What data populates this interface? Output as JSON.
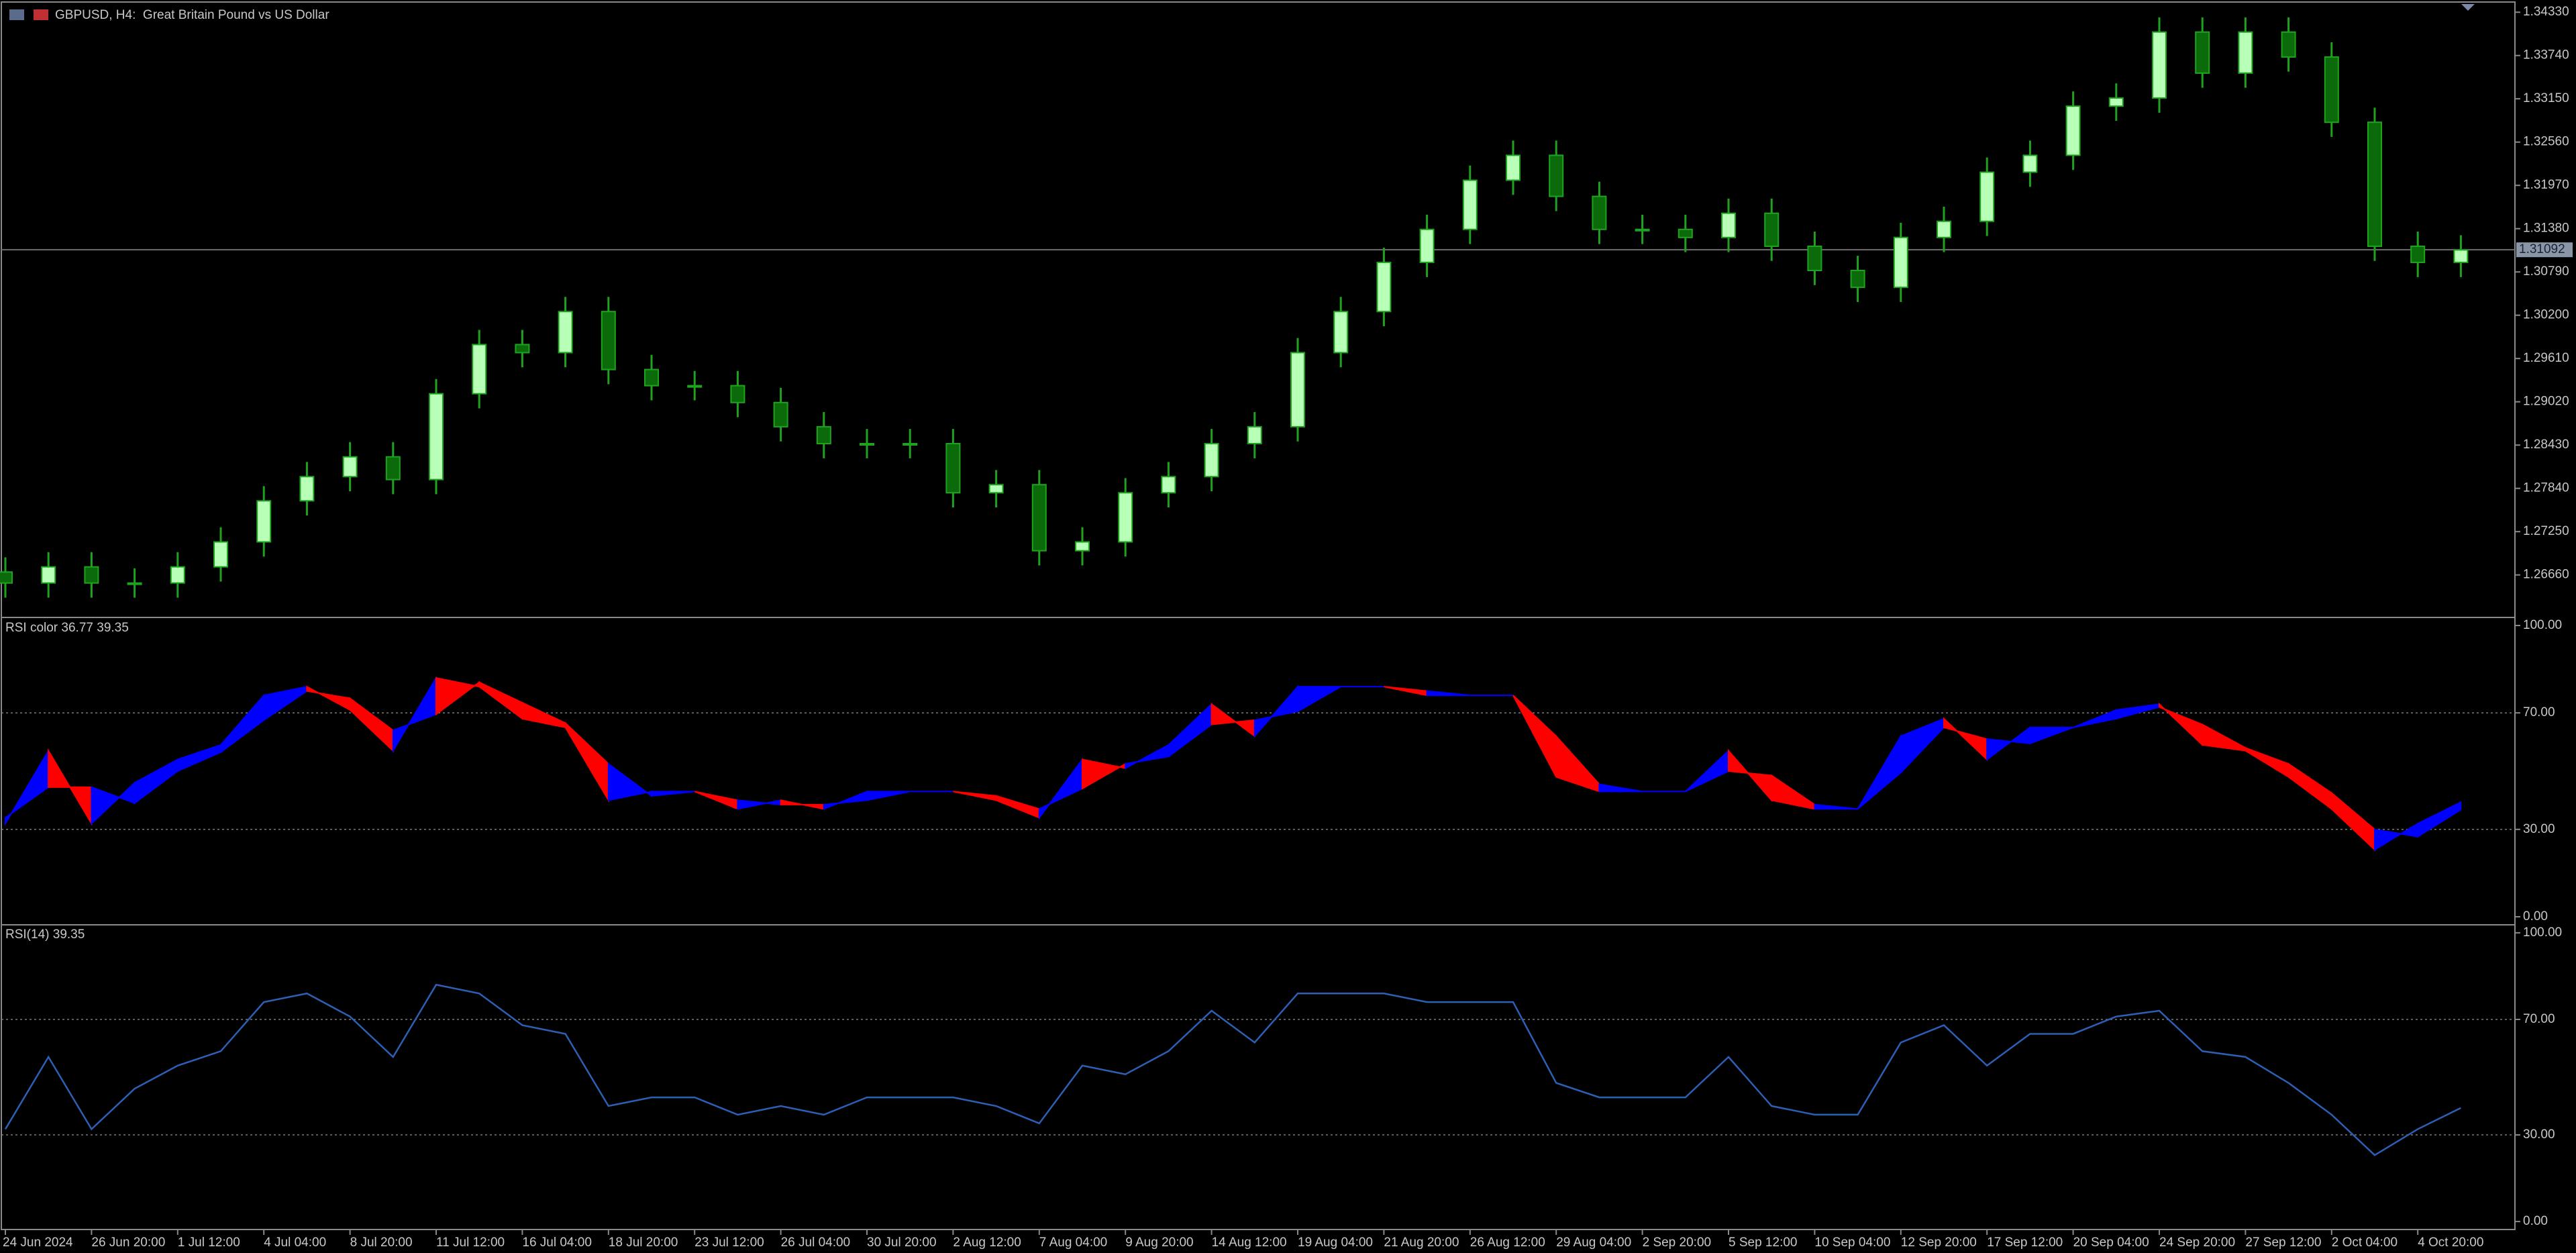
{
  "chart_data": [
    {
      "type": "candlestick",
      "title": "GBPUSD, H4:  Great Britain Pound vs US Dollar",
      "open": [
        1.267,
        1.2655,
        1.2677,
        1.2655,
        1.2655,
        1.2677,
        1.2711,
        1.2767,
        1.28,
        1.2827,
        1.2796,
        1.2913,
        1.298,
        1.2969,
        1.3025,
        1.2946,
        1.2924,
        1.2924,
        1.2901,
        1.2868,
        1.2845,
        1.2845,
        1.2845,
        1.2778,
        1.2789,
        1.2699,
        1.2711,
        1.2778,
        1.28,
        1.2845,
        1.2868,
        1.2969,
        1.3025,
        1.3092,
        1.3137,
        1.3204,
        1.3238,
        1.3182,
        1.3137,
        1.3137,
        1.3126,
        1.3159,
        1.3114,
        1.3081,
        1.3058,
        1.3126,
        1.3148,
        1.3215,
        1.3238,
        1.3305,
        1.3316,
        1.3406,
        1.335,
        1.3406,
        1.3372,
        1.3283,
        1.3114,
        1.3092
      ],
      "high": [
        1.269,
        1.2697,
        1.2697,
        1.2675,
        1.2697,
        1.2731,
        1.2787,
        1.282,
        1.2847,
        1.2847,
        1.2933,
        1.3,
        1.3,
        1.3045,
        1.3045,
        1.2966,
        1.2944,
        1.2944,
        1.2921,
        1.2888,
        1.2865,
        1.2865,
        1.2865,
        1.2809,
        1.2809,
        1.2731,
        1.2798,
        1.282,
        1.2865,
        1.2888,
        1.2989,
        1.3045,
        1.3112,
        1.3157,
        1.3224,
        1.3258,
        1.3258,
        1.3202,
        1.3157,
        1.3157,
        1.3179,
        1.3179,
        1.3134,
        1.3101,
        1.3146,
        1.3168,
        1.3235,
        1.3258,
        1.3325,
        1.3336,
        1.3426,
        1.3426,
        1.3426,
        1.3426,
        1.3392,
        1.3303,
        1.3134,
        1.3129
      ],
      "low": [
        1.2635,
        1.2635,
        1.2635,
        1.2635,
        1.2635,
        1.2657,
        1.2691,
        1.2747,
        1.278,
        1.2776,
        1.2776,
        1.2893,
        1.2949,
        1.2949,
        1.2926,
        1.2904,
        1.2904,
        1.2881,
        1.2848,
        1.2825,
        1.2825,
        1.2825,
        1.2758,
        1.2758,
        1.2679,
        1.2679,
        1.2691,
        1.2758,
        1.278,
        1.2825,
        1.2848,
        1.2949,
        1.3005,
        1.3072,
        1.3117,
        1.3184,
        1.3162,
        1.3117,
        1.3117,
        1.3106,
        1.3106,
        1.3094,
        1.3061,
        1.3038,
        1.3038,
        1.3106,
        1.3128,
        1.3195,
        1.3218,
        1.3285,
        1.3296,
        1.333,
        1.333,
        1.3352,
        1.3263,
        1.3094,
        1.3072,
        1.3072
      ],
      "close": [
        1.2655,
        1.2677,
        1.2655,
        1.2655,
        1.2677,
        1.2711,
        1.2767,
        1.28,
        1.2827,
        1.2796,
        1.2913,
        1.298,
        1.2969,
        1.3025,
        1.2946,
        1.2924,
        1.2924,
        1.2901,
        1.2868,
        1.2845,
        1.2845,
        1.2845,
        1.2778,
        1.2789,
        1.2699,
        1.2711,
        1.2778,
        1.28,
        1.2845,
        1.2868,
        1.2969,
        1.3025,
        1.3092,
        1.3137,
        1.3204,
        1.3238,
        1.3182,
        1.3137,
        1.3137,
        1.3126,
        1.3159,
        1.3114,
        1.3081,
        1.3058,
        1.3126,
        1.3148,
        1.3215,
        1.3238,
        1.3305,
        1.3316,
        1.3406,
        1.335,
        1.3406,
        1.3372,
        1.3283,
        1.3114,
        1.3092,
        1.3109
      ],
      "up_color": "#b8ffb8",
      "down_color": "#0b6b0b",
      "wick_color": "#1fa31f",
      "current_price": 1.31092,
      "current_price_color": "#6e6e6e",
      "ylim": [
        1.26099,
        1.3446
      ],
      "yticks": [
        {
          "value": 1.2666,
          "label": "1.26660"
        },
        {
          "value": 1.2725,
          "label": "1.27250"
        },
        {
          "value": 1.2784,
          "label": "1.27840"
        },
        {
          "value": 1.2843,
          "label": "1.28430"
        },
        {
          "value": 1.2902,
          "label": "1.29020"
        },
        {
          "value": 1.2961,
          "label": "1.29610"
        },
        {
          "value": 1.302,
          "label": "1.30200"
        },
        {
          "value": 1.3079,
          "label": "1.30790"
        },
        {
          "value": 1.3138,
          "label": "1.31380"
        },
        {
          "value": 1.3197,
          "label": "1.31970"
        },
        {
          "value": 1.3256,
          "label": "1.32560"
        },
        {
          "value": 1.3315,
          "label": "1.33150"
        },
        {
          "value": 1.3374,
          "label": "1.33740"
        },
        {
          "value": 1.3433,
          "label": "1.34330"
        }
      ]
    },
    {
      "type": "band",
      "title": "RSI color",
      "series": [
        {
          "values": [
            34,
            44.5,
            44.5,
            39,
            50,
            56.5,
            67.5,
            77.5,
            75,
            64,
            69.5,
            80.5,
            73.5,
            66.5,
            52.5,
            41.5,
            43,
            40,
            38.5,
            38.5,
            40,
            43,
            43,
            41.5,
            37,
            44,
            52.5,
            55,
            66,
            67.5,
            70.5,
            79,
            79,
            77.5,
            76,
            76,
            62,
            45.5,
            43,
            43,
            50,
            48.5,
            38.5,
            37,
            49.5,
            65,
            61,
            59.5,
            65,
            68,
            72,
            66,
            58,
            52.5,
            42.5,
            30,
            27.5,
            36.77
          ]
        },
        {
          "values": [
            32,
            57,
            32,
            46,
            54,
            59,
            76,
            79,
            71,
            57,
            82,
            79,
            68,
            65,
            40,
            43,
            43,
            37,
            40,
            37,
            43,
            43,
            43,
            40,
            34,
            54,
            51,
            59,
            73,
            62,
            79,
            79,
            79,
            76,
            76,
            76,
            48,
            43,
            43,
            43,
            57,
            40,
            37,
            37,
            62,
            68,
            54,
            65,
            65,
            71,
            73,
            59,
            57,
            48,
            37,
            23,
            32,
            39.35
          ]
        }
      ],
      "up_color": "#0000ff",
      "down_color": "#ff0000",
      "levels": [
        70,
        30
      ],
      "ylim": [
        -2.3,
        102.3
      ],
      "yticks": [
        {
          "value": 100,
          "label": "100.00"
        },
        {
          "value": 70,
          "label": "70.00"
        },
        {
          "value": 30,
          "label": "30.00"
        },
        {
          "value": 0,
          "label": "0.00"
        }
      ]
    },
    {
      "type": "line",
      "title": "RSI(14)",
      "values": [
        32,
        57,
        32,
        46,
        54,
        59,
        76,
        79,
        71,
        57,
        82,
        79,
        68,
        65,
        40,
        43,
        43,
        37,
        40,
        37,
        43,
        43,
        43,
        40,
        34,
        54,
        51,
        59,
        73,
        62,
        79,
        79,
        79,
        76,
        76,
        76,
        48,
        43,
        43,
        43,
        57,
        40,
        37,
        37,
        62,
        68,
        54,
        65,
        65,
        71,
        73,
        59,
        57,
        48,
        37,
        23,
        32,
        39.35
      ],
      "color": "#2d5fb4",
      "levels": [
        70,
        30
      ],
      "ylim": [
        -2.3,
        102.3
      ],
      "yticks": [
        {
          "value": 100,
          "label": "100.00"
        },
        {
          "value": 70,
          "label": "70.00"
        },
        {
          "value": 30,
          "label": "30.00"
        },
        {
          "value": 0,
          "label": "0.00"
        }
      ],
      "categories": [
        "24 Jun 2024",
        null,
        "26 Jun 20:00",
        null,
        "1 Jul 12:00",
        null,
        "4 Jul 04:00",
        null,
        "8 Jul 20:00",
        null,
        "11 Jul 12:00",
        null,
        "16 Jul 04:00",
        null,
        "18 Jul 20:00",
        null,
        "23 Jul 12:00",
        null,
        "26 Jul 04:00",
        null,
        "30 Jul 20:00",
        null,
        "2 Aug 12:00",
        null,
        "7 Aug 04:00",
        null,
        "9 Aug 20:00",
        null,
        "14 Aug 12:00",
        null,
        "19 Aug 04:00",
        null,
        "21 Aug 20:00",
        null,
        "26 Aug 12:00",
        null,
        "29 Aug 04:00",
        null,
        "2 Sep 20:00",
        null,
        "5 Sep 12:00",
        null,
        "10 Sep 04:00",
        null,
        "12 Sep 20:00",
        null,
        "17 Sep 12:00",
        null,
        "20 Sep 04:00",
        null,
        "24 Sep 20:00",
        null,
        "27 Sep 12:00",
        null,
        "2 Oct 04:00",
        null,
        "4 Oct 20:00",
        null
      ]
    }
  ]
}
